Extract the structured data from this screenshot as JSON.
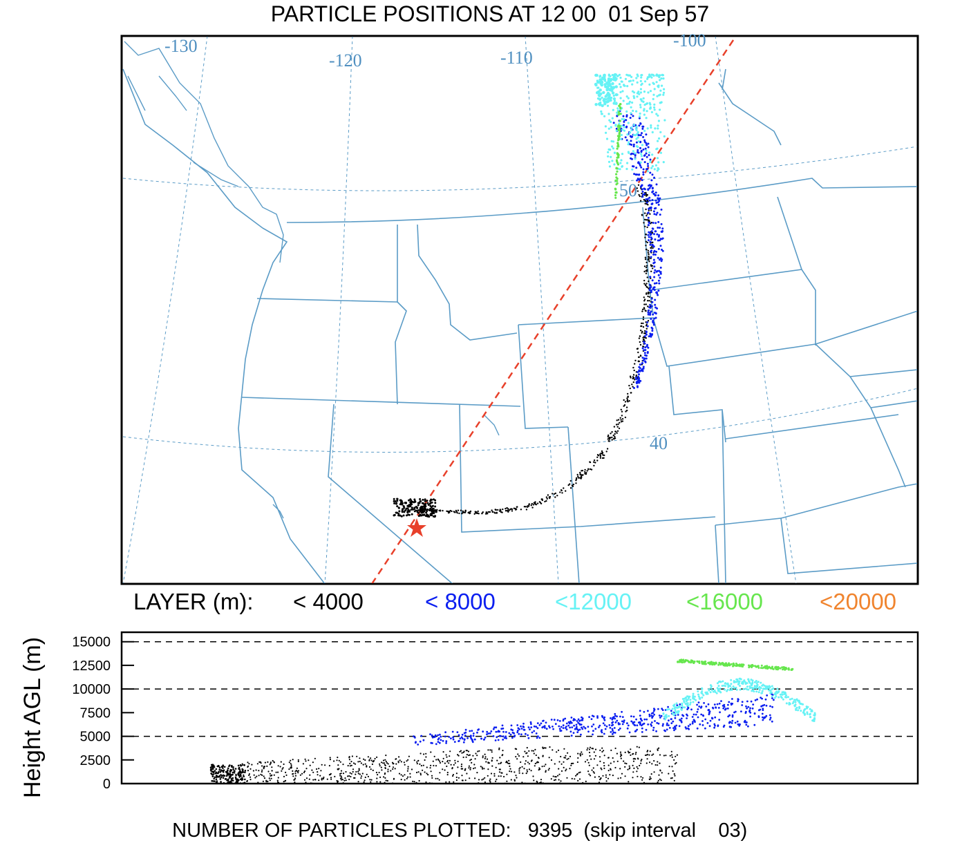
{
  "title": "PARTICLE POSITIONS AT 12 00  01 Sep 57",
  "map": {
    "longitude_labels": [
      "-130",
      "-120",
      "-110",
      "-100"
    ],
    "latitude_labels": [
      "50",
      "40"
    ],
    "source_marker": "star",
    "colors": {
      "boundaries": "#5a9bc6",
      "graticule": "#5a9bc6",
      "trajectory_line": "#e8402a",
      "source_marker": "#e8402a"
    }
  },
  "legend": {
    "label": "LAYER (m):",
    "items": [
      {
        "text": "< 4000",
        "color": "#000000"
      },
      {
        "text": "< 8000",
        "color": "#0a1ef0"
      },
      {
        "text": "<12000",
        "color": "#66f2f5"
      },
      {
        "text": "<16000",
        "color": "#66e64d"
      },
      {
        "text": "<20000",
        "color": "#f0842e"
      }
    ]
  },
  "chart_data": {
    "type": "scatter",
    "ylabel": "Height AGL (m)",
    "ylim": [
      0,
      16000
    ],
    "yticks": [
      "0",
      "2500",
      "5000",
      "7500",
      "10000",
      "12500",
      "15000"
    ],
    "dashed_gridlines": [
      5000,
      10000,
      15000
    ],
    "series": [
      {
        "name": "< 4000",
        "color": "#000000"
      },
      {
        "name": "< 8000",
        "color": "#0a1ef0"
      },
      {
        "name": "<12000",
        "color": "#66f2f5"
      },
      {
        "name": "<16000",
        "color": "#66e64d"
      }
    ]
  },
  "footer": {
    "label": "NUMBER OF PARTICLES PLOTTED:",
    "count": "9395",
    "skip_text": "(skip interval    03)"
  }
}
